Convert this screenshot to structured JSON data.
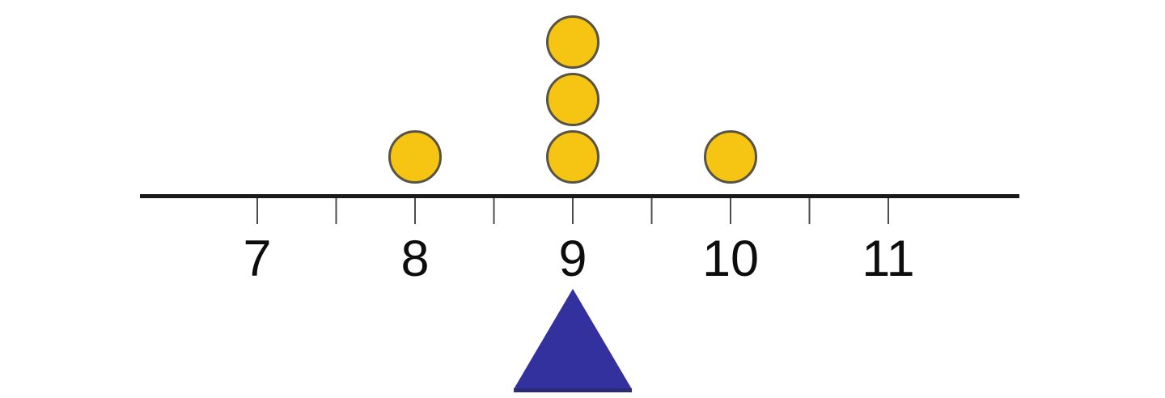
{
  "chart_data": {
    "type": "dot_plot",
    "description": "Dot plot over a number line with a triangle balance-point marker beneath the axis",
    "x_axis": {
      "tick_values": [
        7,
        7.5,
        8,
        8.5,
        9,
        9.5,
        10,
        10.5,
        11
      ],
      "labeled_tick_values": [
        7,
        8,
        9,
        10,
        11
      ],
      "tick_labels": [
        "7",
        "8",
        "9",
        "10",
        "11"
      ],
      "tick_step": 0.5,
      "line_extends_beyond_labels": true
    },
    "points": [
      {
        "x": 8,
        "count": 1
      },
      {
        "x": 9,
        "count": 3
      },
      {
        "x": 10,
        "count": 1
      }
    ],
    "balance_point": {
      "x": 9,
      "marker": "triangle"
    },
    "colors": {
      "dot_fill": "#F6C514",
      "dot_stroke": "#585444",
      "triangle_fill": "#32319E",
      "triangle_base_edge": "#2B2C77",
      "axis_line": "#1A1A1A",
      "tick": "#4D4D4D",
      "label": "#0D0D0D",
      "background": "#FFFFFF"
    }
  }
}
